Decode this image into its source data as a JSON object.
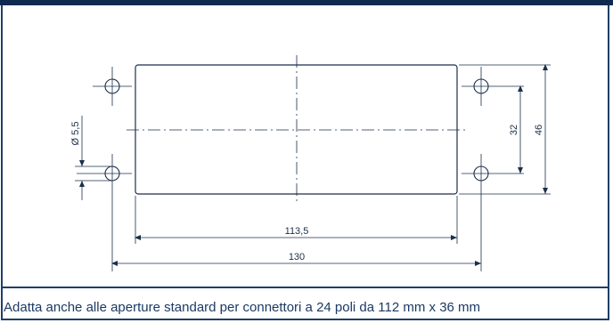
{
  "drawing": {
    "dimensions": {
      "hole_diameter": "Ø 5,5",
      "hole_spacing_vertical": "32",
      "overall_height": "46",
      "cutout_width": "113,5",
      "hole_spacing_horizontal": "130"
    }
  },
  "caption": "Adatta anche alle aperture standard per connettori a 24 poli da 112 mm x 36 mm",
  "colors": {
    "frame": "#1f3f66",
    "line": "#1b2f4a",
    "caption": "#1b3a63"
  }
}
